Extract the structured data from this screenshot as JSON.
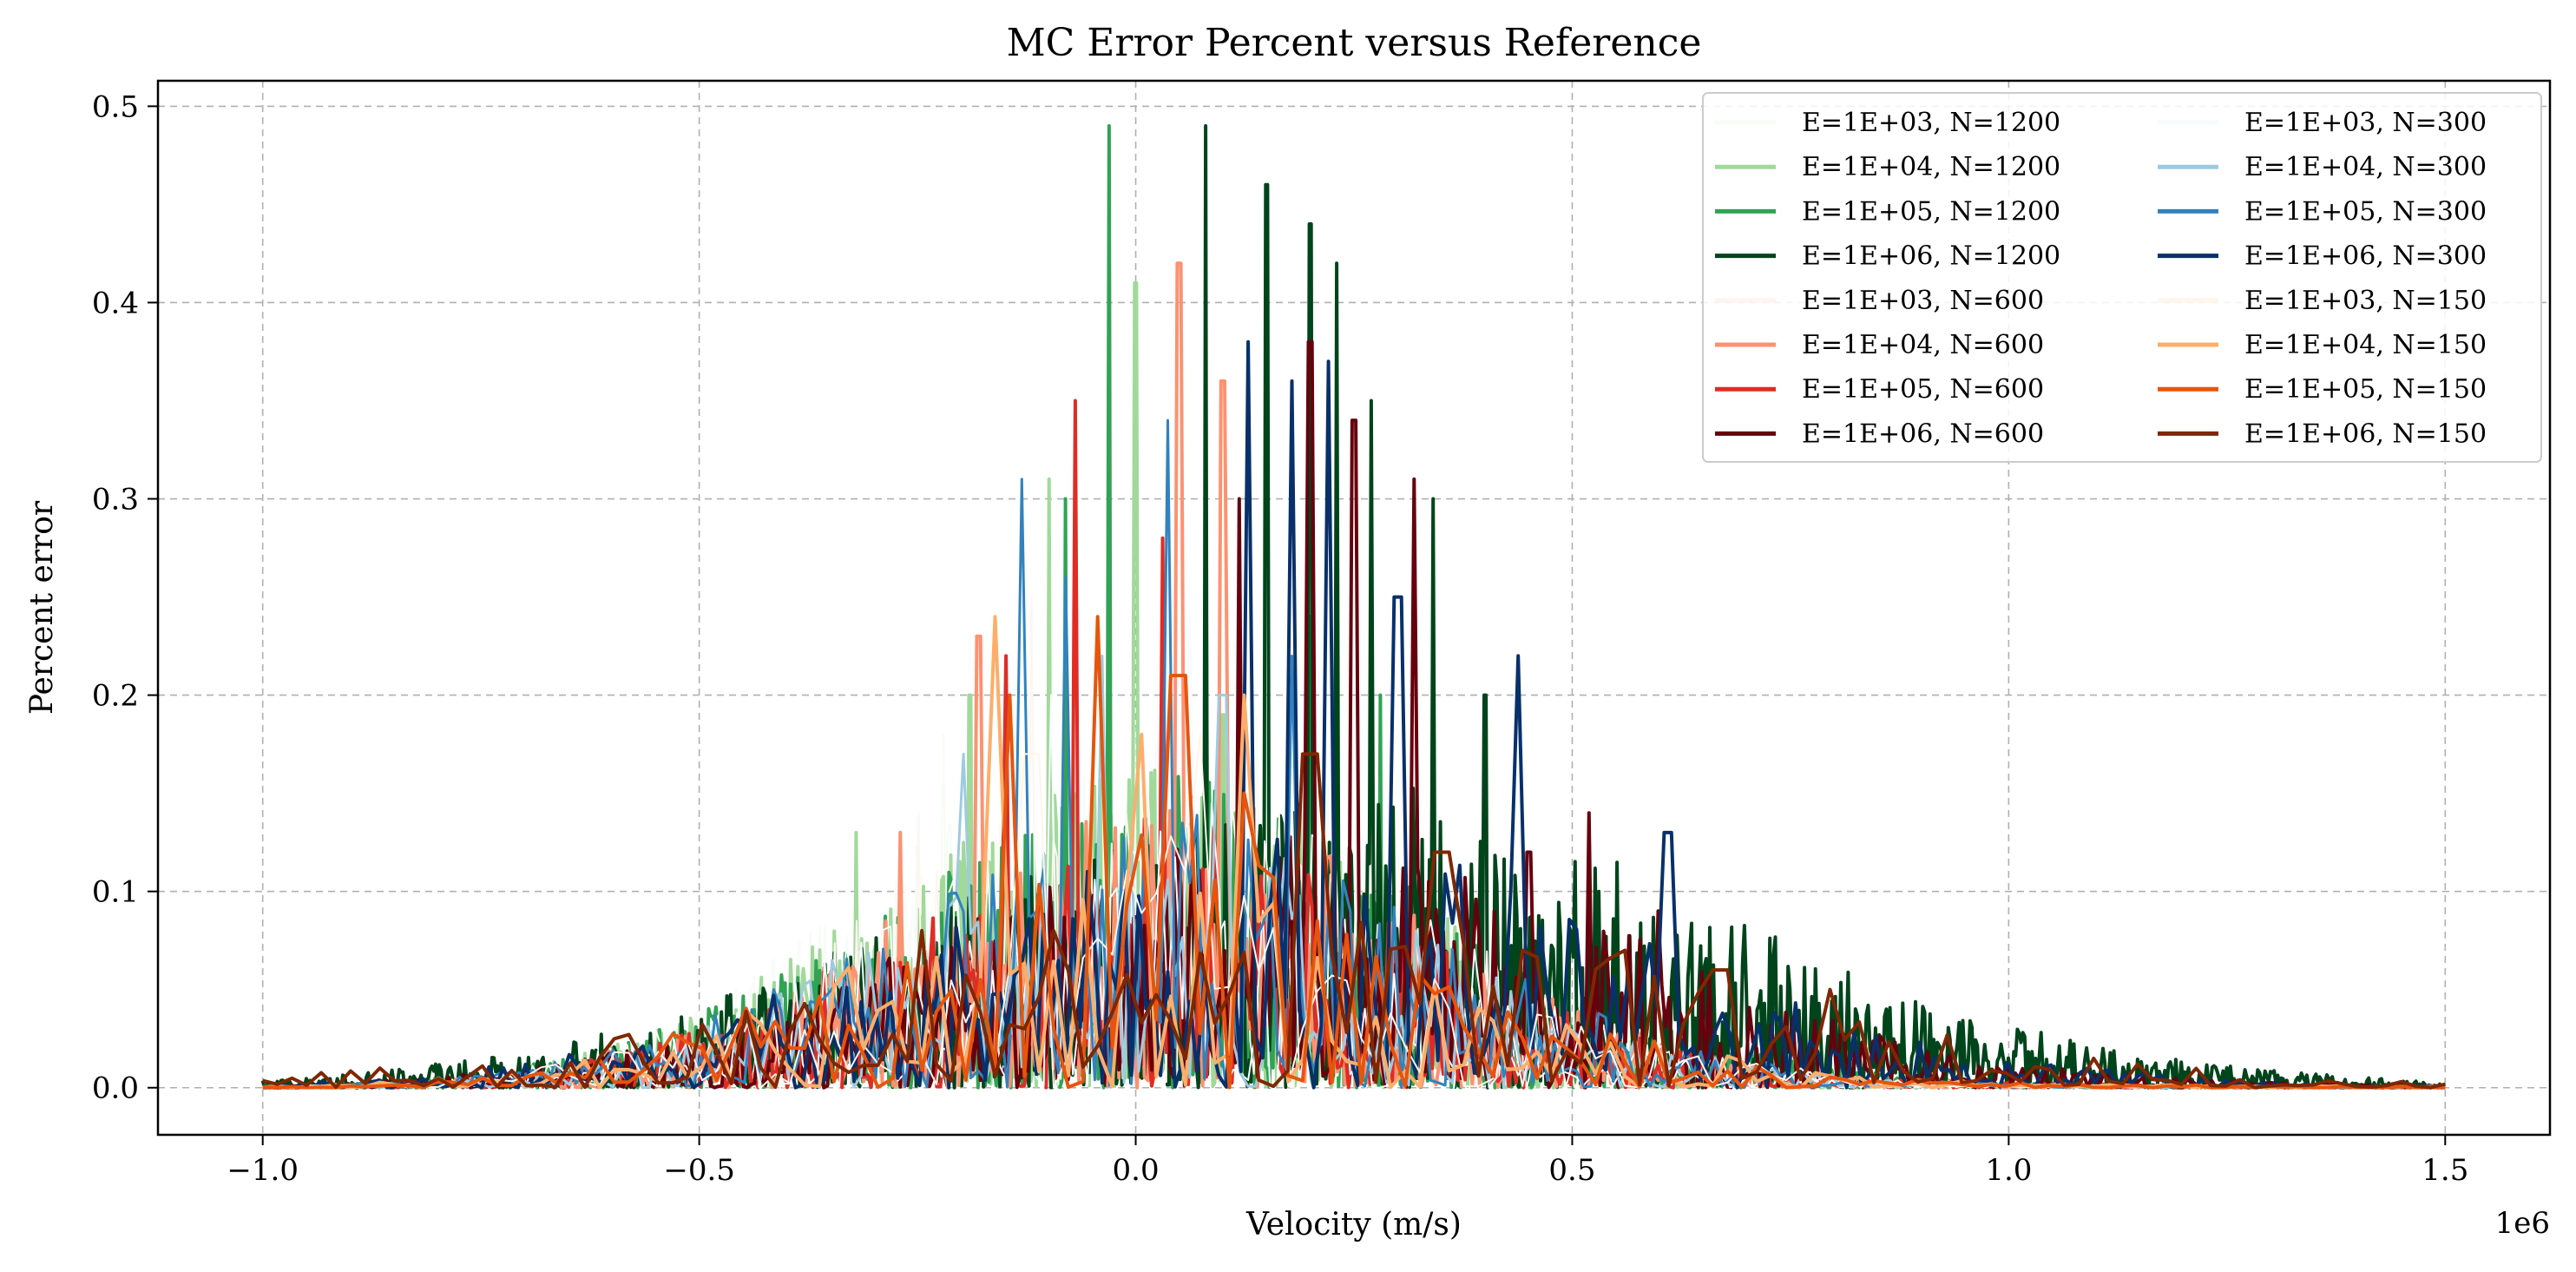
{
  "chart_data": {
    "type": "line",
    "title": "MC Error Percent versus Reference",
    "xlabel": "Velocity (m/s)",
    "ylabel": "Percent error",
    "x_offset_label": "1e6",
    "xlim": [
      -1.12,
      1.62
    ],
    "ylim": [
      -0.024,
      0.513
    ],
    "x_ticks": [
      -1.0,
      -0.5,
      0.0,
      0.5,
      1.0,
      1.5
    ],
    "x_tick_labels": [
      "−1.0",
      "−0.5",
      "0.0",
      "0.5",
      "1.0",
      "1.5"
    ],
    "y_ticks": [
      0.0,
      0.1,
      0.2,
      0.3,
      0.4,
      0.5
    ],
    "y_tick_labels": [
      "0.0",
      "0.1",
      "0.2",
      "0.3",
      "0.4",
      "0.5"
    ],
    "grid": true,
    "legend_position": "top-right",
    "legend_columns": 2,
    "series": [
      {
        "name": "E=1E+03, N=1200",
        "color": "#f7fcf5",
        "width": 2,
        "n": 1200,
        "peak": 0.12,
        "spread": 0.3,
        "center": 0.02,
        "spikes": [
          [
            -0.22,
            0.18
          ],
          [
            -0.05,
            0.21
          ],
          [
            0.06,
            0.17
          ],
          [
            0.15,
            0.13
          ]
        ]
      },
      {
        "name": "E=1E+04, N=1200",
        "color": "#a1d99b",
        "width": 4,
        "n": 1200,
        "peak": 0.1,
        "spread": 0.3,
        "center": 0.0,
        "spikes": [
          [
            -0.32,
            0.13
          ],
          [
            -0.1,
            0.31
          ],
          [
            0.0,
            0.41
          ],
          [
            -0.19,
            0.2
          ],
          [
            0.1,
            0.19
          ]
        ]
      },
      {
        "name": "E=1E+05, N=1200",
        "color": "#31a354",
        "width": 4,
        "n": 1200,
        "peak": 0.09,
        "spread": 0.32,
        "center": 0.02,
        "spikes": [
          [
            -0.03,
            0.49
          ],
          [
            -0.08,
            0.3
          ],
          [
            0.08,
            0.32
          ],
          [
            0.2,
            0.24
          ],
          [
            0.28,
            0.2
          ]
        ]
      },
      {
        "name": "E=1E+06, N=1200",
        "color": "#00441b",
        "width": 4,
        "n": 1200,
        "peak": 0.09,
        "spread": 0.45,
        "center": 0.2,
        "spikes": [
          [
            0.08,
            0.49
          ],
          [
            0.15,
            0.46
          ],
          [
            0.2,
            0.44
          ],
          [
            0.23,
            0.42
          ],
          [
            0.34,
            0.3
          ],
          [
            0.27,
            0.35
          ],
          [
            0.4,
            0.2
          ],
          [
            0.53,
            0.1
          ],
          [
            0.68,
            0.06
          ],
          [
            0.75,
            0.05
          ],
          [
            0.86,
            0.04
          ]
        ]
      },
      {
        "name": "E=1E+03, N=600",
        "color": "#fff5f0",
        "width": 2,
        "n": 600,
        "peak": 0.1,
        "spread": 0.3,
        "center": 0.0,
        "spikes": [
          [
            -0.12,
            0.25
          ],
          [
            0.04,
            0.3
          ],
          [
            -0.25,
            0.14
          ]
        ]
      },
      {
        "name": "E=1E+04, N=600",
        "color": "#fc9272",
        "width": 4,
        "n": 600,
        "peak": 0.09,
        "spread": 0.3,
        "center": 0.0,
        "spikes": [
          [
            -0.27,
            0.13
          ],
          [
            -0.18,
            0.23
          ],
          [
            0.05,
            0.42
          ],
          [
            0.1,
            0.36
          ]
        ]
      },
      {
        "name": "E=1E+05, N=600",
        "color": "#de2d26",
        "width": 4,
        "n": 600,
        "peak": 0.08,
        "spread": 0.3,
        "center": 0.0,
        "spikes": [
          [
            -0.07,
            0.35
          ],
          [
            -0.15,
            0.22
          ],
          [
            0.03,
            0.28
          ],
          [
            0.12,
            0.22
          ]
        ]
      },
      {
        "name": "E=1E+06, N=600",
        "color": "#67000d",
        "width": 4,
        "n": 600,
        "peak": 0.08,
        "spread": 0.38,
        "center": 0.15,
        "spikes": [
          [
            0.2,
            0.38
          ],
          [
            0.25,
            0.34
          ],
          [
            0.32,
            0.31
          ],
          [
            0.12,
            0.3
          ],
          [
            0.45,
            0.12
          ],
          [
            0.52,
            0.14
          ],
          [
            0.6,
            0.09
          ]
        ]
      },
      {
        "name": "E=1E+03, N=300",
        "color": "#f7fbff",
        "width": 2,
        "n": 300,
        "peak": 0.09,
        "spread": 0.3,
        "center": 0.0,
        "spikes": [
          [
            -0.1,
            0.2
          ],
          [
            0.06,
            0.24
          ],
          [
            0.18,
            0.15
          ]
        ]
      },
      {
        "name": "E=1E+04, N=300",
        "color": "#9ecae1",
        "width": 3,
        "n": 300,
        "peak": 0.08,
        "spread": 0.3,
        "center": 0.0,
        "spikes": [
          [
            -0.2,
            0.17
          ],
          [
            -0.04,
            0.22
          ],
          [
            0.1,
            0.2
          ]
        ]
      },
      {
        "name": "E=1E+05, N=300",
        "color": "#3182bd",
        "width": 3,
        "n": 300,
        "peak": 0.08,
        "spread": 0.32,
        "center": 0.0,
        "spikes": [
          [
            -0.13,
            0.31
          ],
          [
            0.04,
            0.34
          ],
          [
            -0.08,
            0.26
          ],
          [
            0.18,
            0.22
          ]
        ]
      },
      {
        "name": "E=1E+06, N=300",
        "color": "#08306b",
        "width": 4,
        "n": 300,
        "peak": 0.08,
        "spread": 0.4,
        "center": 0.15,
        "spikes": [
          [
            0.13,
            0.38
          ],
          [
            0.18,
            0.36
          ],
          [
            0.22,
            0.37
          ],
          [
            0.44,
            0.22
          ],
          [
            0.61,
            0.13
          ],
          [
            0.3,
            0.25
          ]
        ]
      },
      {
        "name": "E=1E+03, N=150",
        "color": "#fff5eb",
        "width": 2,
        "n": 150,
        "peak": 0.07,
        "spread": 0.32,
        "center": 0.0,
        "spikes": [
          [
            -0.12,
            0.17
          ],
          [
            0.08,
            0.18
          ]
        ]
      },
      {
        "name": "E=1E+04, N=150",
        "color": "#fdae6b",
        "width": 4,
        "n": 150,
        "peak": 0.07,
        "spread": 0.32,
        "center": 0.0,
        "spikes": [
          [
            -0.16,
            0.24
          ],
          [
            0.0,
            0.18
          ],
          [
            0.12,
            0.2
          ]
        ]
      },
      {
        "name": "E=1E+05, N=150",
        "color": "#e6550d",
        "width": 4,
        "n": 150,
        "peak": 0.07,
        "spread": 0.32,
        "center": 0.0,
        "spikes": [
          [
            -0.05,
            0.24
          ],
          [
            0.05,
            0.21
          ],
          [
            -0.15,
            0.2
          ],
          [
            0.12,
            0.15
          ]
        ]
      },
      {
        "name": "E=1E+06, N=150",
        "color": "#7f2704",
        "width": 4,
        "n": 150,
        "peak": 0.05,
        "spread": 0.5,
        "center": 0.15,
        "spikes": [
          [
            0.2,
            0.17
          ],
          [
            -0.25,
            0.08
          ],
          [
            -0.1,
            0.08
          ],
          [
            0.35,
            0.12
          ],
          [
            0.56,
            0.07
          ],
          [
            0.67,
            0.06
          ],
          [
            0.8,
            0.05
          ]
        ]
      }
    ]
  }
}
